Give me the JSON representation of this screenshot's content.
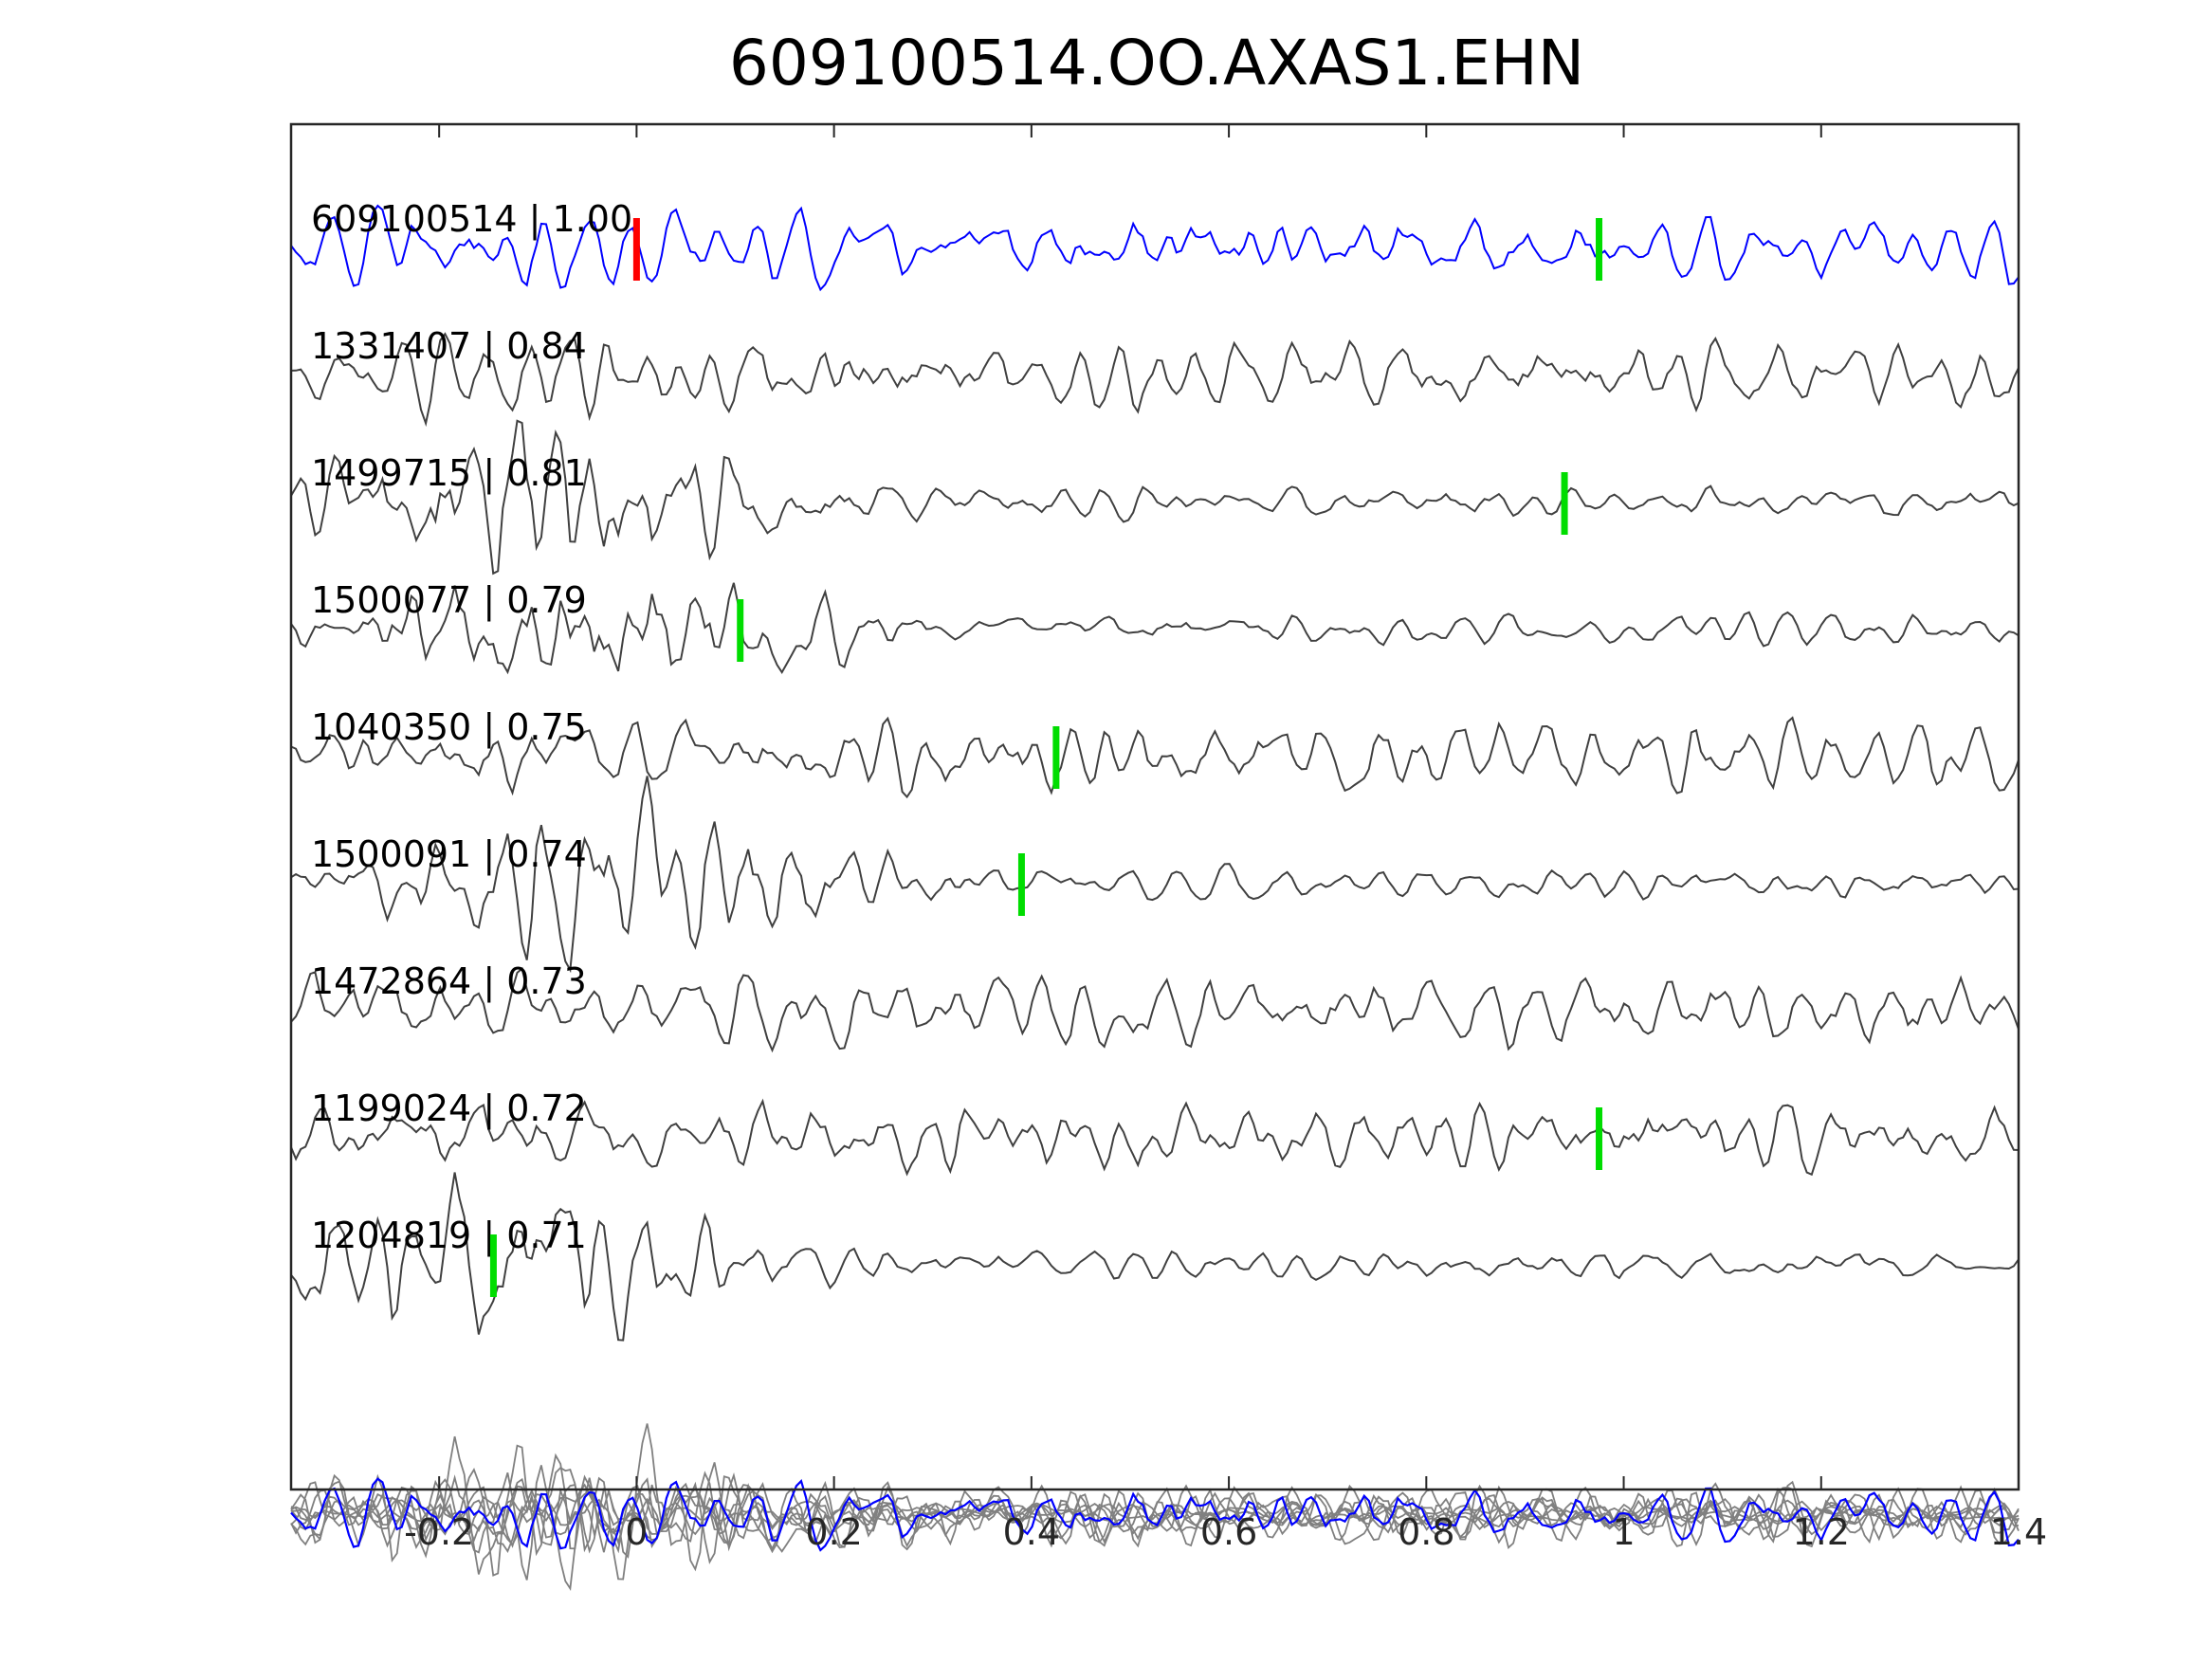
{
  "chart_data": {
    "type": "line",
    "title": "609100514.OO.AXAS1.EHN",
    "xlabel": "",
    "ylabel": "",
    "xlim": [
      -0.35,
      1.4
    ],
    "xticks": [
      -0.2,
      0,
      0.2,
      0.4,
      0.6,
      0.8,
      1,
      1.2,
      1.4
    ],
    "xtick_labels": [
      "-0.2",
      "0",
      "0.2",
      "0.4",
      "0.6",
      "0.8",
      "1",
      "1.2",
      "1.4"
    ],
    "grid": false,
    "colors": {
      "reference": "#0000ff",
      "trace": "#404040",
      "stack": "#808080",
      "pick_reference": "#ff0000",
      "pick": "#00dd00"
    },
    "series": [
      {
        "label": "609100514 | 1.00",
        "amplitude": 0.45,
        "pick": 0.0,
        "pick_color": "#ff0000",
        "pick2": 0.975,
        "packet_center": null
      },
      {
        "label": "1331407 | 0.84",
        "amplitude": 0.5,
        "pick": null,
        "packet_center": null
      },
      {
        "label": "1499715 | 0.81",
        "amplitude": 0.6,
        "pick": 0.94,
        "packet_center": -0.1
      },
      {
        "label": "1500077 | 0.79",
        "amplitude": 0.55,
        "pick": 0.105,
        "packet_center": -0.05
      },
      {
        "label": "1040350 | 0.75",
        "amplitude": 0.5,
        "pick": 0.425,
        "packet_center": null
      },
      {
        "label": "1500091 | 0.74",
        "amplitude": 0.55,
        "pick": 0.39,
        "packet_center": 0.0
      },
      {
        "label": "1472864 | 0.73",
        "amplitude": 0.5,
        "pick": null,
        "packet_center": null
      },
      {
        "label": "1199024 | 0.72",
        "amplitude": 0.5,
        "pick": 0.975,
        "packet_center": null
      },
      {
        "label": "1204819 | 0.71",
        "amplitude": 0.55,
        "pick": -0.145,
        "packet_center": -0.15
      }
    ],
    "stack": {
      "label": "",
      "overlay_count": 9
    }
  }
}
